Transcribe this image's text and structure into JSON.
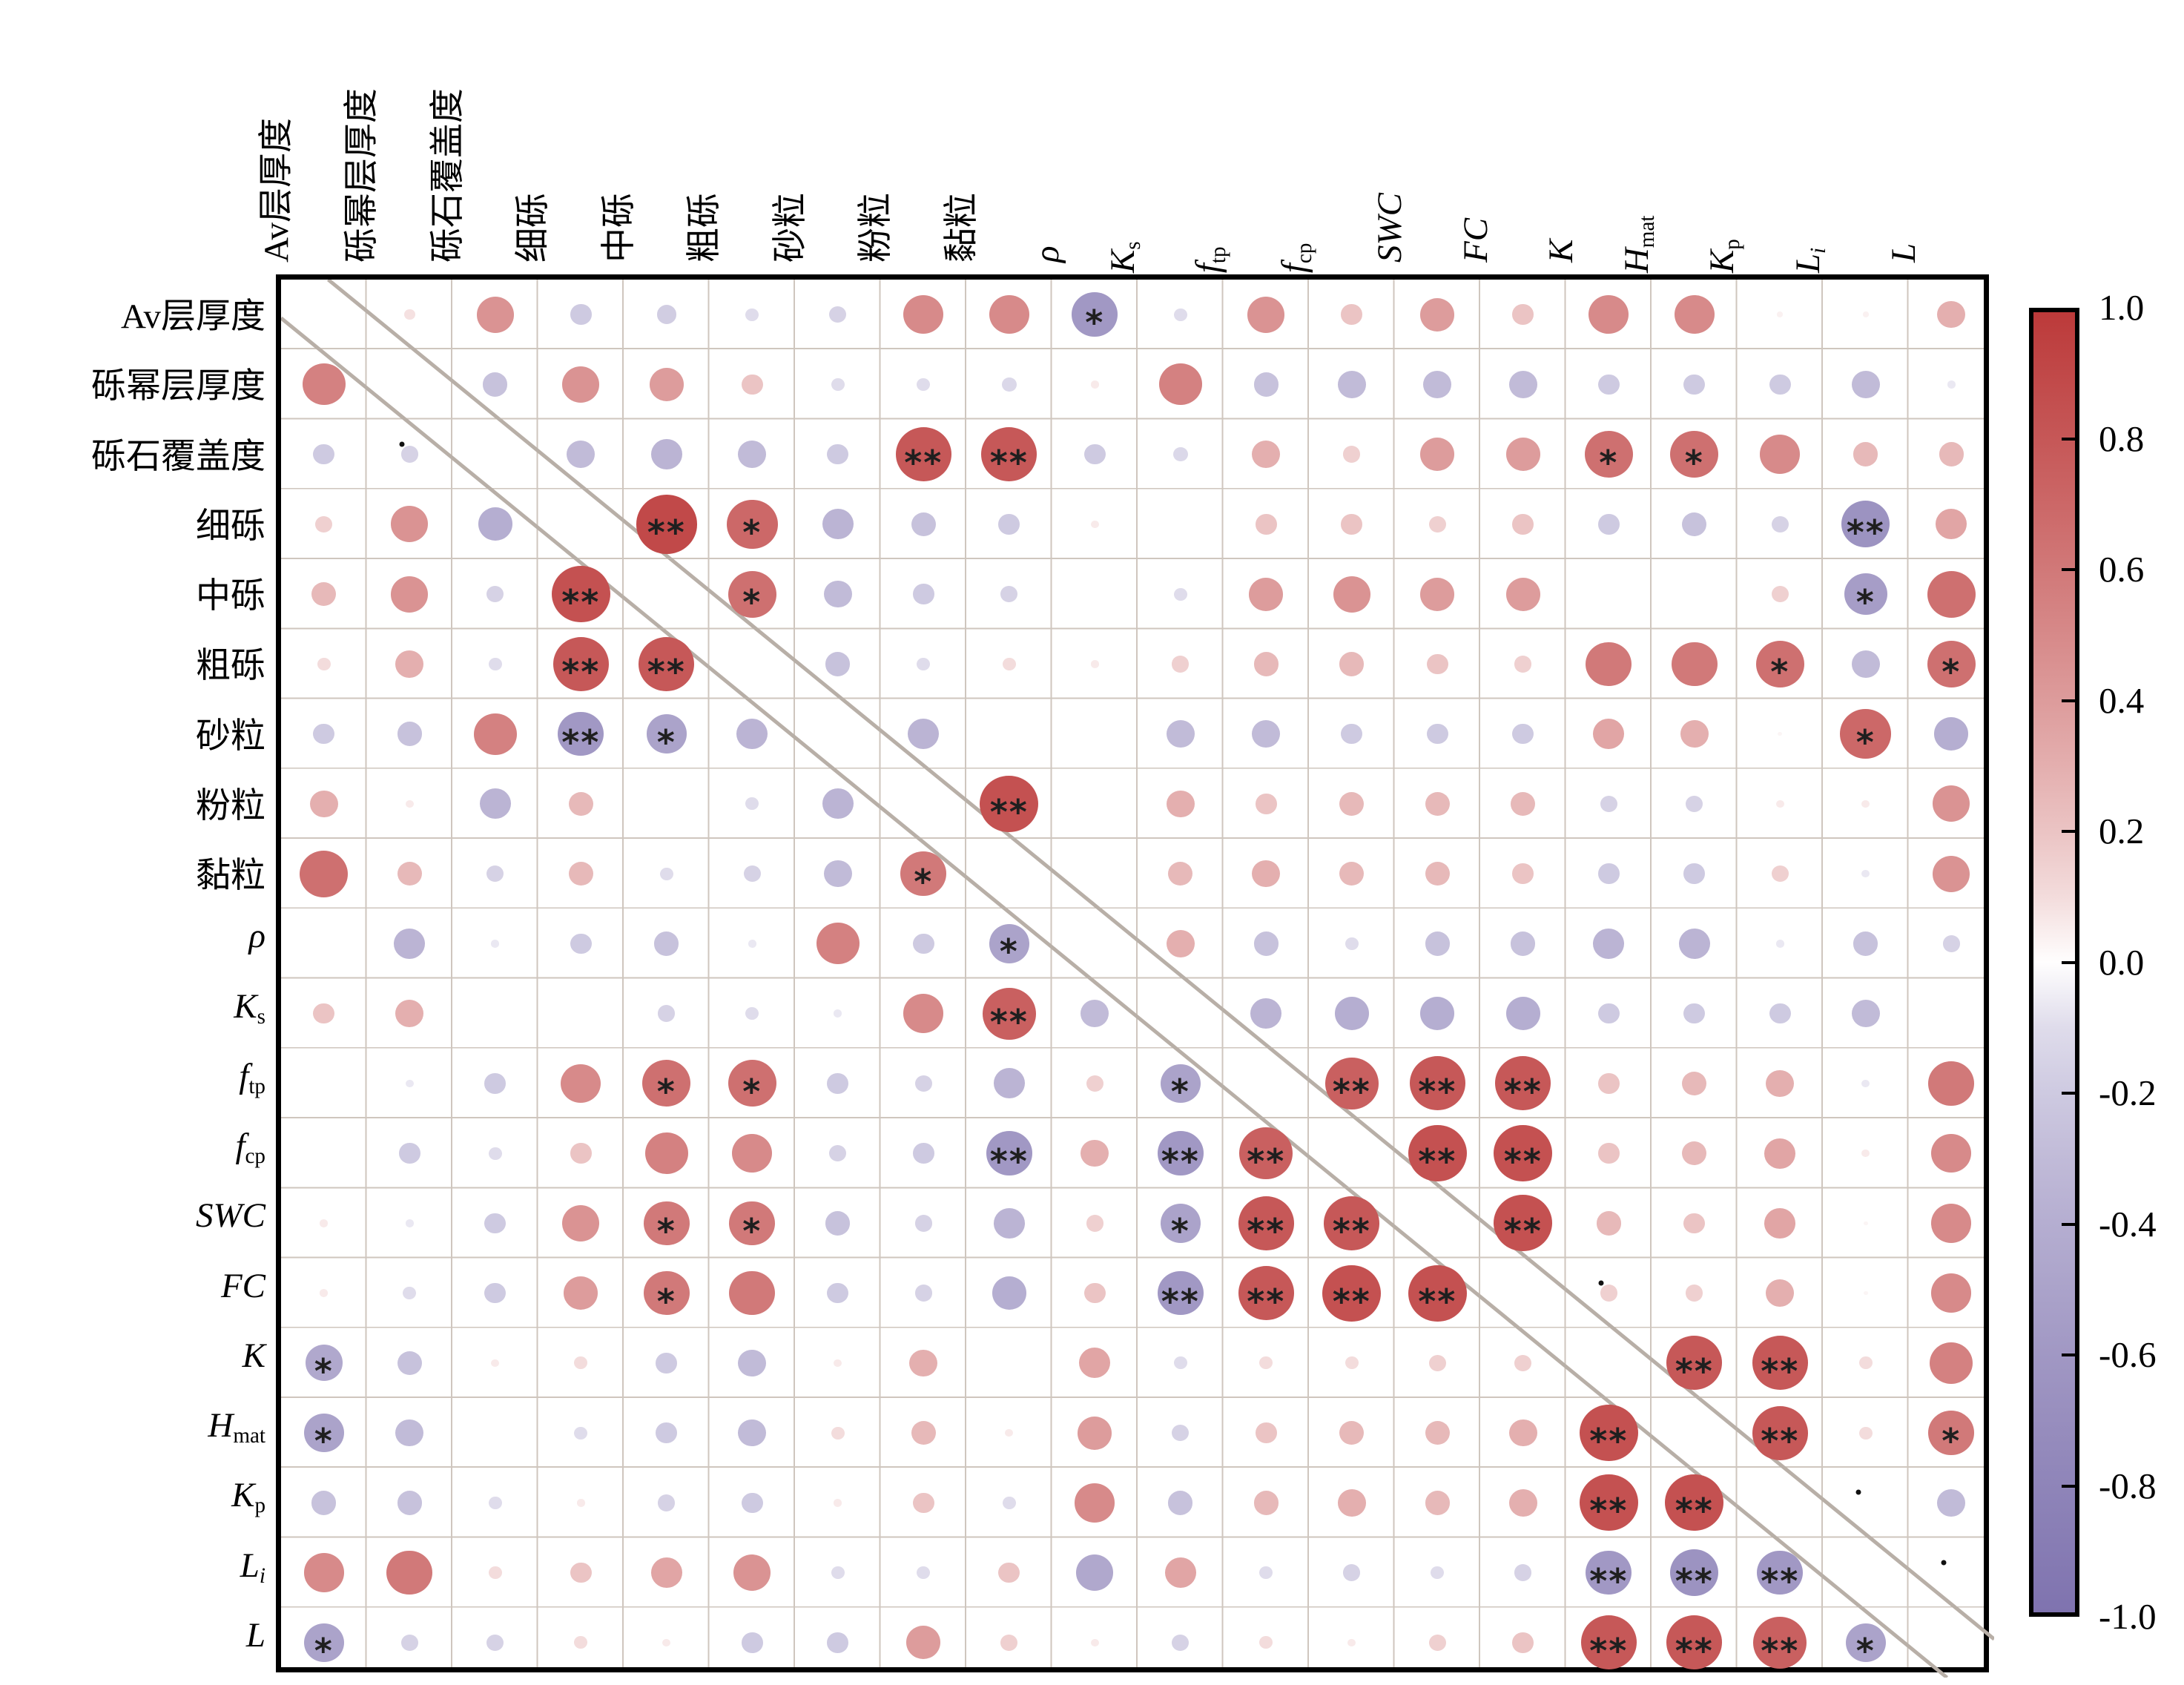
{
  "chart_data": {
    "type": "heatmap",
    "subtype": "correlation-bubble-matrix",
    "title": "",
    "legend_position": "right",
    "variables": [
      {
        "text": "Av层厚度",
        "italic": false,
        "sub": ""
      },
      {
        "text": "砾幂层厚度",
        "italic": false,
        "sub": ""
      },
      {
        "text": "砾石覆盖度",
        "italic": false,
        "sub": ""
      },
      {
        "text": "细砾",
        "italic": false,
        "sub": ""
      },
      {
        "text": "中砾",
        "italic": false,
        "sub": ""
      },
      {
        "text": "粗砾",
        "italic": false,
        "sub": ""
      },
      {
        "text": "砂粒",
        "italic": false,
        "sub": ""
      },
      {
        "text": "粉粒",
        "italic": false,
        "sub": ""
      },
      {
        "text": "黏粒",
        "italic": false,
        "sub": ""
      },
      {
        "text": "ρ",
        "italic": true,
        "sub": ""
      },
      {
        "text": "K",
        "italic": true,
        "sub": "s"
      },
      {
        "text": "f",
        "italic": true,
        "sub": "tp"
      },
      {
        "text": "f",
        "italic": true,
        "sub": "cp"
      },
      {
        "text": "SWC",
        "italic": true,
        "sub": ""
      },
      {
        "text": "FC",
        "italic": true,
        "sub": ""
      },
      {
        "text": "K",
        "italic": true,
        "sub": ""
      },
      {
        "text": "H",
        "italic": true,
        "sub": "mat"
      },
      {
        "text": "K",
        "italic": true,
        "sub": "p"
      },
      {
        "text": "L",
        "italic": true,
        "sub": "i",
        "sub_italic": true
      },
      {
        "text": "L",
        "italic": true,
        "sub": ""
      }
    ],
    "values": [
      [
        null,
        0.08,
        0.45,
        -0.2,
        -0.18,
        -0.1,
        -0.15,
        0.5,
        0.5,
        -0.6,
        -0.1,
        0.45,
        0.2,
        0.4,
        0.2,
        0.5,
        0.5,
        0.03,
        0.03,
        0.3
      ],
      [
        0.55,
        null,
        -0.25,
        0.45,
        0.4,
        0.2,
        -0.1,
        -0.1,
        -0.12,
        0.05,
        0.55,
        -0.25,
        -0.3,
        -0.3,
        -0.3,
        -0.2,
        -0.2,
        -0.2,
        -0.3,
        -0.05
      ],
      [
        -0.2,
        -0.15,
        null,
        -0.3,
        -0.35,
        -0.3,
        -0.2,
        0.8,
        0.8,
        -0.2,
        -0.12,
        0.3,
        0.15,
        0.4,
        0.4,
        0.65,
        0.65,
        0.5,
        0.25,
        0.25
      ],
      [
        0.15,
        0.45,
        -0.4,
        null,
        0.9,
        0.7,
        -0.35,
        -0.25,
        -0.2,
        0.05,
        0.0,
        0.2,
        0.2,
        0.15,
        0.2,
        -0.2,
        -0.25,
        -0.15,
        -0.65,
        0.35
      ],
      [
        0.25,
        0.45,
        -0.15,
        0.85,
        null,
        0.65,
        -0.3,
        -0.2,
        -0.15,
        0.0,
        -0.1,
        0.4,
        0.45,
        0.4,
        0.4,
        0.0,
        0.0,
        0.15,
        -0.55,
        0.65
      ],
      [
        0.1,
        0.3,
        -0.1,
        0.8,
        0.8,
        null,
        -0.25,
        -0.1,
        0.1,
        0.05,
        0.15,
        0.25,
        0.25,
        0.2,
        0.15,
        0.6,
        0.6,
        0.65,
        -0.3,
        0.65
      ],
      [
        -0.2,
        -0.25,
        0.55,
        -0.6,
        -0.5,
        -0.35,
        null,
        -0.35,
        0.0,
        0.0,
        -0.3,
        -0.3,
        -0.2,
        -0.2,
        -0.2,
        0.35,
        0.3,
        0.02,
        0.7,
        -0.4
      ],
      [
        0.3,
        0.05,
        -0.35,
        0.25,
        0.0,
        -0.1,
        -0.35,
        null,
        0.85,
        0.0,
        0.3,
        0.2,
        0.25,
        0.25,
        0.25,
        -0.15,
        -0.15,
        0.05,
        0.05,
        0.45
      ],
      [
        0.65,
        0.25,
        -0.15,
        0.25,
        -0.1,
        -0.15,
        -0.3,
        0.6,
        null,
        0.0,
        0.25,
        0.3,
        0.25,
        0.25,
        0.2,
        -0.2,
        -0.2,
        0.15,
        -0.05,
        0.45
      ],
      [
        0.0,
        -0.35,
        -0.05,
        -0.2,
        -0.25,
        -0.05,
        0.55,
        -0.2,
        -0.5,
        null,
        0.3,
        -0.25,
        -0.1,
        -0.25,
        -0.25,
        -0.35,
        -0.35,
        -0.05,
        -0.25,
        -0.15
      ],
      [
        0.2,
        0.3,
        0.0,
        0.0,
        -0.15,
        -0.1,
        -0.05,
        0.5,
        0.75,
        -0.3,
        null,
        -0.35,
        -0.4,
        -0.4,
        -0.4,
        -0.2,
        -0.2,
        -0.2,
        -0.3,
        0.0
      ],
      [
        0.0,
        -0.05,
        -0.2,
        0.5,
        0.65,
        0.65,
        -0.2,
        -0.15,
        -0.35,
        0.15,
        -0.5,
        null,
        0.75,
        0.8,
        0.8,
        0.2,
        0.25,
        0.3,
        -0.05,
        0.6
      ],
      [
        0.0,
        -0.2,
        -0.1,
        0.2,
        0.55,
        0.5,
        -0.15,
        -0.2,
        -0.6,
        0.3,
        -0.6,
        0.75,
        null,
        0.85,
        0.85,
        0.2,
        0.25,
        0.35,
        0.05,
        0.5
      ],
      [
        0.05,
        -0.05,
        -0.2,
        0.45,
        0.6,
        0.6,
        -0.25,
        -0.15,
        -0.35,
        0.15,
        -0.5,
        0.8,
        0.8,
        null,
        0.85,
        0.25,
        0.2,
        0.35,
        0.02,
        0.5
      ],
      [
        0.05,
        -0.1,
        -0.2,
        0.4,
        0.6,
        0.6,
        -0.2,
        -0.15,
        -0.4,
        0.2,
        -0.6,
        0.8,
        0.85,
        0.85,
        null,
        0.15,
        0.15,
        0.3,
        0.02,
        0.5
      ],
      [
        -0.45,
        -0.25,
        0.05,
        0.1,
        -0.2,
        -0.3,
        0.05,
        0.3,
        0.0,
        0.35,
        -0.1,
        0.1,
        0.1,
        0.15,
        0.15,
        null,
        0.8,
        0.8,
        0.1,
        0.55
      ],
      [
        -0.5,
        -0.3,
        0.0,
        -0.1,
        -0.2,
        -0.3,
        0.1,
        0.25,
        0.05,
        0.4,
        -0.15,
        0.2,
        0.25,
        0.25,
        0.3,
        0.85,
        null,
        0.8,
        0.1,
        0.6
      ],
      [
        -0.25,
        -0.25,
        -0.1,
        0.05,
        -0.15,
        -0.2,
        0.05,
        0.2,
        -0.1,
        0.5,
        -0.25,
        0.25,
        0.3,
        0.25,
        0.3,
        0.85,
        0.85,
        null,
        0.0,
        -0.3
      ],
      [
        0.5,
        0.6,
        0.1,
        0.2,
        0.35,
        0.45,
        -0.1,
        -0.1,
        0.2,
        -0.45,
        0.35,
        -0.1,
        -0.15,
        -0.1,
        -0.15,
        -0.6,
        -0.65,
        -0.6,
        null,
        0.0
      ],
      [
        -0.5,
        -0.15,
        -0.15,
        0.1,
        0.05,
        -0.2,
        -0.2,
        0.4,
        0.15,
        0.05,
        -0.15,
        0.1,
        0.05,
        0.15,
        0.2,
        0.8,
        0.8,
        0.75,
        -0.5,
        null
      ]
    ],
    "sig_marks": {
      "1-10": "*",
      "3-2": ".",
      "3-8": "**",
      "3-9": "**",
      "3-16": "*",
      "3-17": "*",
      "4-5": "**",
      "4-6": "*",
      "4-19": "**",
      "5-4": "**",
      "5-6": "*",
      "5-19": "*",
      "6-4": "**",
      "6-5": "**",
      "6-18": "*",
      "6-20": "*",
      "7-4": "**",
      "7-5": "*",
      "7-19": "*",
      "8-9": "**",
      "9-8": "*",
      "10-9": "*",
      "11-9": "**",
      "12-5": "*",
      "12-6": "*",
      "12-11": "*",
      "12-13": "**",
      "12-14": "**",
      "12-15": "**",
      "13-9": "**",
      "13-11": "**",
      "13-12": "**",
      "13-14": "**",
      "13-15": "**",
      "14-5": "*",
      "14-6": "*",
      "14-11": "*",
      "14-12": "**",
      "14-13": "**",
      "14-15": "**",
      "15-5": "*",
      "15-11": "**",
      "15-12": "**",
      "15-13": "**",
      "15-14": "**",
      "15-16": ".",
      "16-1": "*",
      "16-17": "**",
      "16-18": "**",
      "17-1": "*",
      "17-16": "**",
      "17-18": "**",
      "17-20": "*",
      "18-16": "**",
      "18-17": "**",
      "18-19": ".",
      "19-16": "**",
      "19-17": "**",
      "19-18": "**",
      "19-20": ".",
      "20-1": "*",
      "20-16": "**",
      "20-17": "**",
      "20-18": "**",
      "20-19": "*"
    },
    "colorbar_ticks": [
      "1.0",
      "0.8",
      "0.6",
      "0.4",
      "0.2",
      "0.0",
      "-0.2",
      "-0.4",
      "-0.6",
      "-0.8",
      "-1.0"
    ],
    "value_range": [
      -1,
      1
    ],
    "colors": {
      "positive_max": "#bc3a3a",
      "negative_max": "#7f73af",
      "grid_line": "#cfc6be",
      "diagonal_line": "#b8afa7",
      "border": "#000000",
      "star": "#1f1f1f",
      "background": "#ffffff"
    }
  }
}
